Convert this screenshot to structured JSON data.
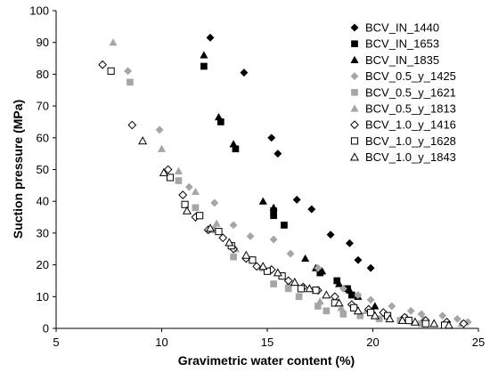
{
  "chart_data": {
    "type": "scatter",
    "title": "",
    "xlabel": "Gravimetric water content (%)",
    "ylabel": "Suction pressure (MPa)",
    "xlim": [
      5,
      25
    ],
    "ylim": [
      0,
      100
    ],
    "xticks": [
      5,
      10,
      15,
      20,
      25
    ],
    "yticks": [
      0,
      10,
      20,
      30,
      40,
      50,
      60,
      70,
      80,
      90,
      100
    ],
    "grid": false,
    "legend": "top-right",
    "series": [
      {
        "name": "BCV_IN_1440",
        "marker": "diamond",
        "color": "#000000",
        "fill": "filled",
        "x": [
          12.3,
          13.9,
          15.2,
          15.5,
          16.4,
          17.1,
          18.0,
          18.9,
          19.3,
          19.9
        ],
        "y": [
          91.5,
          80.5,
          60.0,
          55.0,
          40.5,
          37.5,
          29.5,
          26.8,
          21.5,
          19.0
        ]
      },
      {
        "name": "BCV_IN_1653",
        "marker": "square",
        "color": "#000000",
        "fill": "filled",
        "x": [
          12.0,
          12.8,
          13.5,
          15.3,
          15.3,
          15.8,
          17.5,
          18.3,
          18.8,
          19.0
        ],
        "y": [
          82.5,
          65.0,
          56.5,
          37.0,
          35.5,
          32.5,
          17.5,
          15.0,
          12.5,
          10.5
        ]
      },
      {
        "name": "BCV_IN_1835",
        "marker": "triangle",
        "color": "#000000",
        "fill": "filled",
        "x": [
          12.0,
          12.7,
          13.4,
          14.8,
          15.3,
          16.8,
          17.3,
          17.6,
          18.4,
          18.9,
          19.3,
          20.1
        ],
        "y": [
          86.0,
          66.5,
          58.0,
          40.0,
          38.0,
          22.0,
          19.0,
          18.0,
          14.0,
          12.0,
          10.0,
          7.0
        ]
      },
      {
        "name": "BCV_0.5_y_1425",
        "marker": "diamond",
        "color": "#a6a6a6",
        "fill": "filled",
        "x": [
          8.4,
          9.9,
          11.3,
          12.5,
          13.4,
          14.2,
          15.3,
          16.1,
          17.4,
          18.6,
          19.3,
          19.9,
          20.9,
          21.8,
          22.3,
          23.3,
          24.0,
          24.5
        ],
        "y": [
          81.0,
          62.5,
          44.5,
          39.5,
          32.5,
          29.0,
          28.0,
          23.5,
          19.0,
          12.5,
          10.5,
          9.0,
          7.0,
          5.5,
          4.5,
          4.0,
          3.0,
          2.0
        ]
      },
      {
        "name": "BCV_0.5_y_1621",
        "marker": "square",
        "color": "#a6a6a6",
        "fill": "filled",
        "x": [
          8.5,
          10.8,
          11.6,
          12.4,
          13.4,
          15.3,
          16.0,
          16.5,
          17.4,
          17.8,
          18.6,
          19.4,
          20.3,
          21.3,
          22.3
        ],
        "y": [
          77.5,
          46.5,
          38.0,
          31.0,
          22.5,
          14.0,
          12.5,
          10.0,
          7.0,
          5.5,
          4.5,
          4.0,
          3.0,
          2.5,
          1.5
        ]
      },
      {
        "name": "BCV_0.5_y_1813",
        "marker": "triangle",
        "color": "#a6a6a6",
        "fill": "filled",
        "x": [
          7.7,
          10.0,
          10.8,
          11.6,
          12.6,
          13.5,
          14.8,
          16.0,
          17.5,
          18.5,
          19.7,
          20.6,
          21.6,
          22.4,
          24.2
        ],
        "y": [
          90.0,
          56.5,
          49.5,
          43.0,
          33.0,
          25.0,
          19.0,
          14.0,
          8.5,
          6.5,
          5.5,
          4.5,
          3.5,
          3.0,
          1.5
        ]
      },
      {
        "name": "BCV_1.0_y_1416",
        "marker": "diamond",
        "color": "#000000",
        "fill": "open",
        "x": [
          7.2,
          8.6,
          10.3,
          11.0,
          11.6,
          12.2,
          12.9,
          13.4,
          14.0,
          14.5,
          15.2,
          16.0,
          16.7,
          17.4,
          18.2,
          19.0,
          19.8,
          20.5,
          21.5,
          22.5,
          23.5,
          24.3
        ],
        "y": [
          83.0,
          64.0,
          50.0,
          42.0,
          35.0,
          31.0,
          28.5,
          25.0,
          22.0,
          19.5,
          18.5,
          15.0,
          13.0,
          12.0,
          10.0,
          7.5,
          6.0,
          5.0,
          3.5,
          2.5,
          2.0,
          1.5
        ]
      },
      {
        "name": "BCV_1.0_y_1628",
        "marker": "square",
        "color": "#000000",
        "fill": "open",
        "x": [
          7.6,
          10.4,
          11.1,
          11.8,
          12.7,
          13.3,
          14.3,
          15.0,
          15.7,
          16.6,
          17.3,
          18.2,
          19.1,
          19.9,
          20.7,
          21.7,
          22.5,
          23.4
        ],
        "y": [
          81.0,
          47.5,
          39.0,
          35.5,
          30.5,
          26.0,
          21.5,
          18.0,
          16.5,
          12.5,
          12.0,
          8.0,
          6.5,
          5.0,
          4.0,
          2.5,
          1.5,
          1.0
        ]
      },
      {
        "name": "BCV_1.0_y_1843",
        "marker": "triangle",
        "color": "#000000",
        "fill": "open",
        "x": [
          9.1,
          10.1,
          11.2,
          12.3,
          13.2,
          14.0,
          14.8,
          15.5,
          16.3,
          17.0,
          17.8,
          18.4,
          19.3,
          20.1,
          20.8,
          21.4,
          22.0,
          22.9,
          23.6
        ],
        "y": [
          59.0,
          49.0,
          37.0,
          31.5,
          27.0,
          23.0,
          19.5,
          17.5,
          14.5,
          12.5,
          10.5,
          8.0,
          5.5,
          4.0,
          3.0,
          2.5,
          2.0,
          1.5,
          1.0
        ]
      }
    ]
  }
}
